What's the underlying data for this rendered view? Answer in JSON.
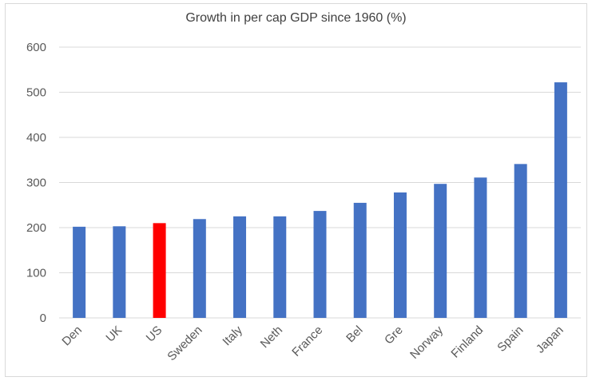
{
  "chart_data": {
    "type": "bar",
    "title": "Growth in per cap GDP since 1960 (%)",
    "xlabel": "",
    "ylabel": "",
    "categories": [
      "Den",
      "UK",
      "US",
      "Sweden",
      "Italy",
      "Neth",
      "France",
      "Bel",
      "Gre",
      "Norway",
      "Finland",
      "Spain",
      "Japan"
    ],
    "values": [
      202,
      203,
      210,
      219,
      225,
      225,
      237,
      255,
      278,
      297,
      311,
      341,
      522
    ],
    "ylim": [
      0,
      600
    ],
    "yticks": [
      "0",
      "100",
      "200",
      "300",
      "400",
      "500",
      "600"
    ],
    "grid": true,
    "legend": "none",
    "colors": {
      "default_bar": "#4472c4",
      "highlight_bar": "#ff0000",
      "highlight_category": "US",
      "gridline": "#d9d9d9"
    }
  }
}
